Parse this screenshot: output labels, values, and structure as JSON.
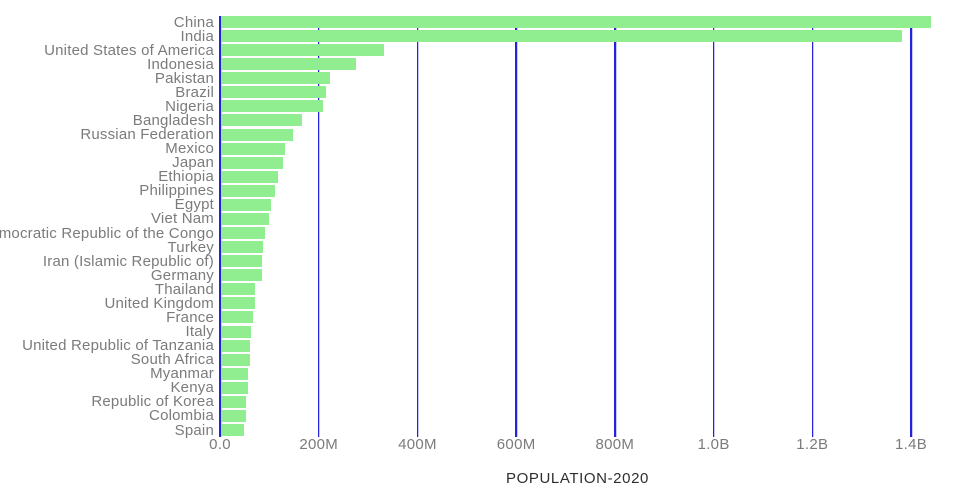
{
  "chart_data": {
    "type": "bar",
    "orientation": "horizontal",
    "title": "POPULATION-2020",
    "xlabel": "POPULATION-2020",
    "ylabel": "",
    "unit": "persons (millions)",
    "categories": [
      "China",
      "India",
      "United States of America",
      "Indonesia",
      "Pakistan",
      "Brazil",
      "Nigeria",
      "Bangladesh",
      "Russian Federation",
      "Mexico",
      "Japan",
      "Ethiopia",
      "Philippines",
      "Egypt",
      "Viet Nam",
      "Democratic Republic of the Congo",
      "Turkey",
      "Iran (Islamic Republic of)",
      "Germany",
      "Thailand",
      "United Kingdom",
      "France",
      "Italy",
      "United Republic of Tanzania",
      "South Africa",
      "Myanmar",
      "Kenya",
      "Republic of Korea",
      "Colombia",
      "Spain"
    ],
    "values_millions": [
      1439.3,
      1380.0,
      331.0,
      273.5,
      220.9,
      212.6,
      206.1,
      164.7,
      145.9,
      128.9,
      126.5,
      115.0,
      109.6,
      102.3,
      97.3,
      89.6,
      84.3,
      84.0,
      83.8,
      69.8,
      67.9,
      65.3,
      60.5,
      59.7,
      59.3,
      54.4,
      53.8,
      51.3,
      50.9,
      46.8
    ],
    "x_ticks": [
      {
        "label": "0.0",
        "value_millions": 0
      },
      {
        "label": "200M",
        "value_millions": 200
      },
      {
        "label": "400M",
        "value_millions": 400
      },
      {
        "label": "600M",
        "value_millions": 600
      },
      {
        "label": "800M",
        "value_millions": 800
      },
      {
        "label": "1.0B",
        "value_millions": 1000
      },
      {
        "label": "1.2B",
        "value_millions": 1200
      },
      {
        "label": "1.4B",
        "value_millions": 1400
      }
    ],
    "xlim_millions": [
      0,
      1450
    ],
    "grid": "vertical gridlines at each x tick, drawn behind bars",
    "legend": "none",
    "colors": {
      "bar": "#90EE90",
      "gridline": "#2323dc",
      "tick_label": "#7b7b7b",
      "category_label": "#7b7b7b",
      "axis_title": "#2e2e2e",
      "background": "#ffffff"
    }
  }
}
